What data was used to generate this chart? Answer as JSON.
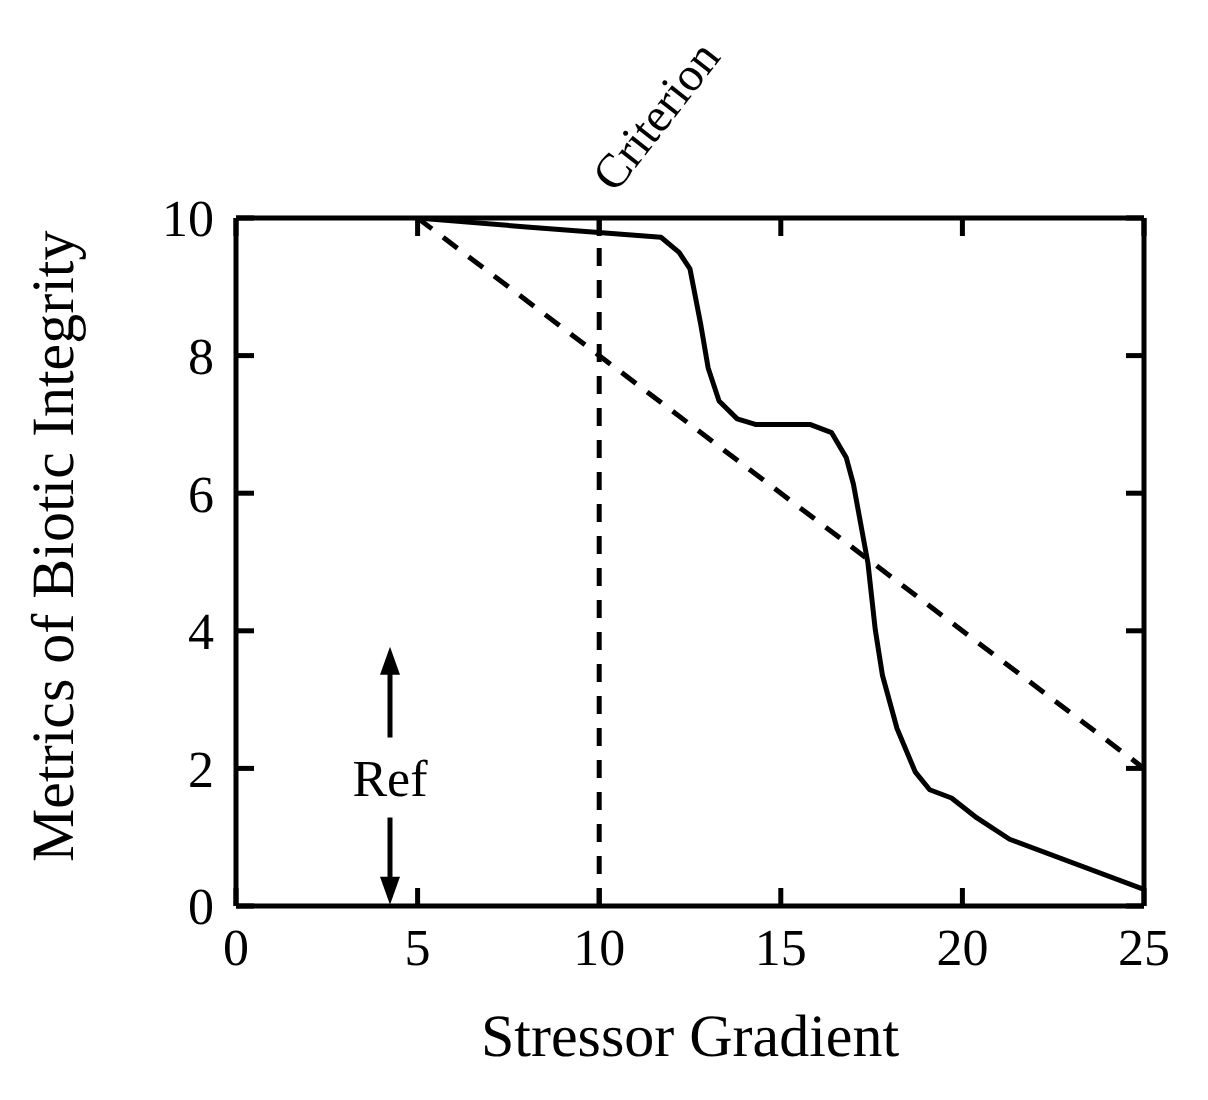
{
  "chart_data": {
    "type": "line",
    "xlabel": "Stressor Gradient",
    "ylabel": "Metrics of Biotic Integrity",
    "xlim": [
      0,
      25
    ],
    "ylim": [
      0,
      10
    ],
    "xticks": [
      0,
      5,
      10,
      15,
      20,
      25
    ],
    "yticks": [
      0,
      2,
      4,
      6,
      8,
      10
    ],
    "marker": "none",
    "series": [
      {
        "color": "#000000",
        "line_style": "solid",
        "x": [
          5,
          8,
          11.7,
          12.2,
          12.5,
          12.8,
          13.0,
          13.3,
          13.8,
          14.3,
          15.8,
          16.4,
          16.8,
          17.0,
          17.4,
          17.6,
          17.8,
          18.2,
          18.7,
          19.1,
          19.7,
          20.4,
          21.3,
          25
        ],
        "values": [
          10,
          9.87,
          9.72,
          9.5,
          9.26,
          8.44,
          7.82,
          7.34,
          7.08,
          7.0,
          7.0,
          6.88,
          6.52,
          6.13,
          4.98,
          4.02,
          3.35,
          2.58,
          1.95,
          1.69,
          1.57,
          1.28,
          0.97,
          0.24
        ]
      },
      {
        "color": "#000000",
        "line_style": "dashed",
        "x": [
          5,
          25
        ],
        "values": [
          10,
          2
        ]
      }
    ],
    "ref_lines": [
      {
        "axis": "x",
        "value": 10,
        "label": "Criterion",
        "color": "#000000",
        "line_style": "dashed"
      }
    ],
    "annotations": [
      "Ref"
    ]
  }
}
